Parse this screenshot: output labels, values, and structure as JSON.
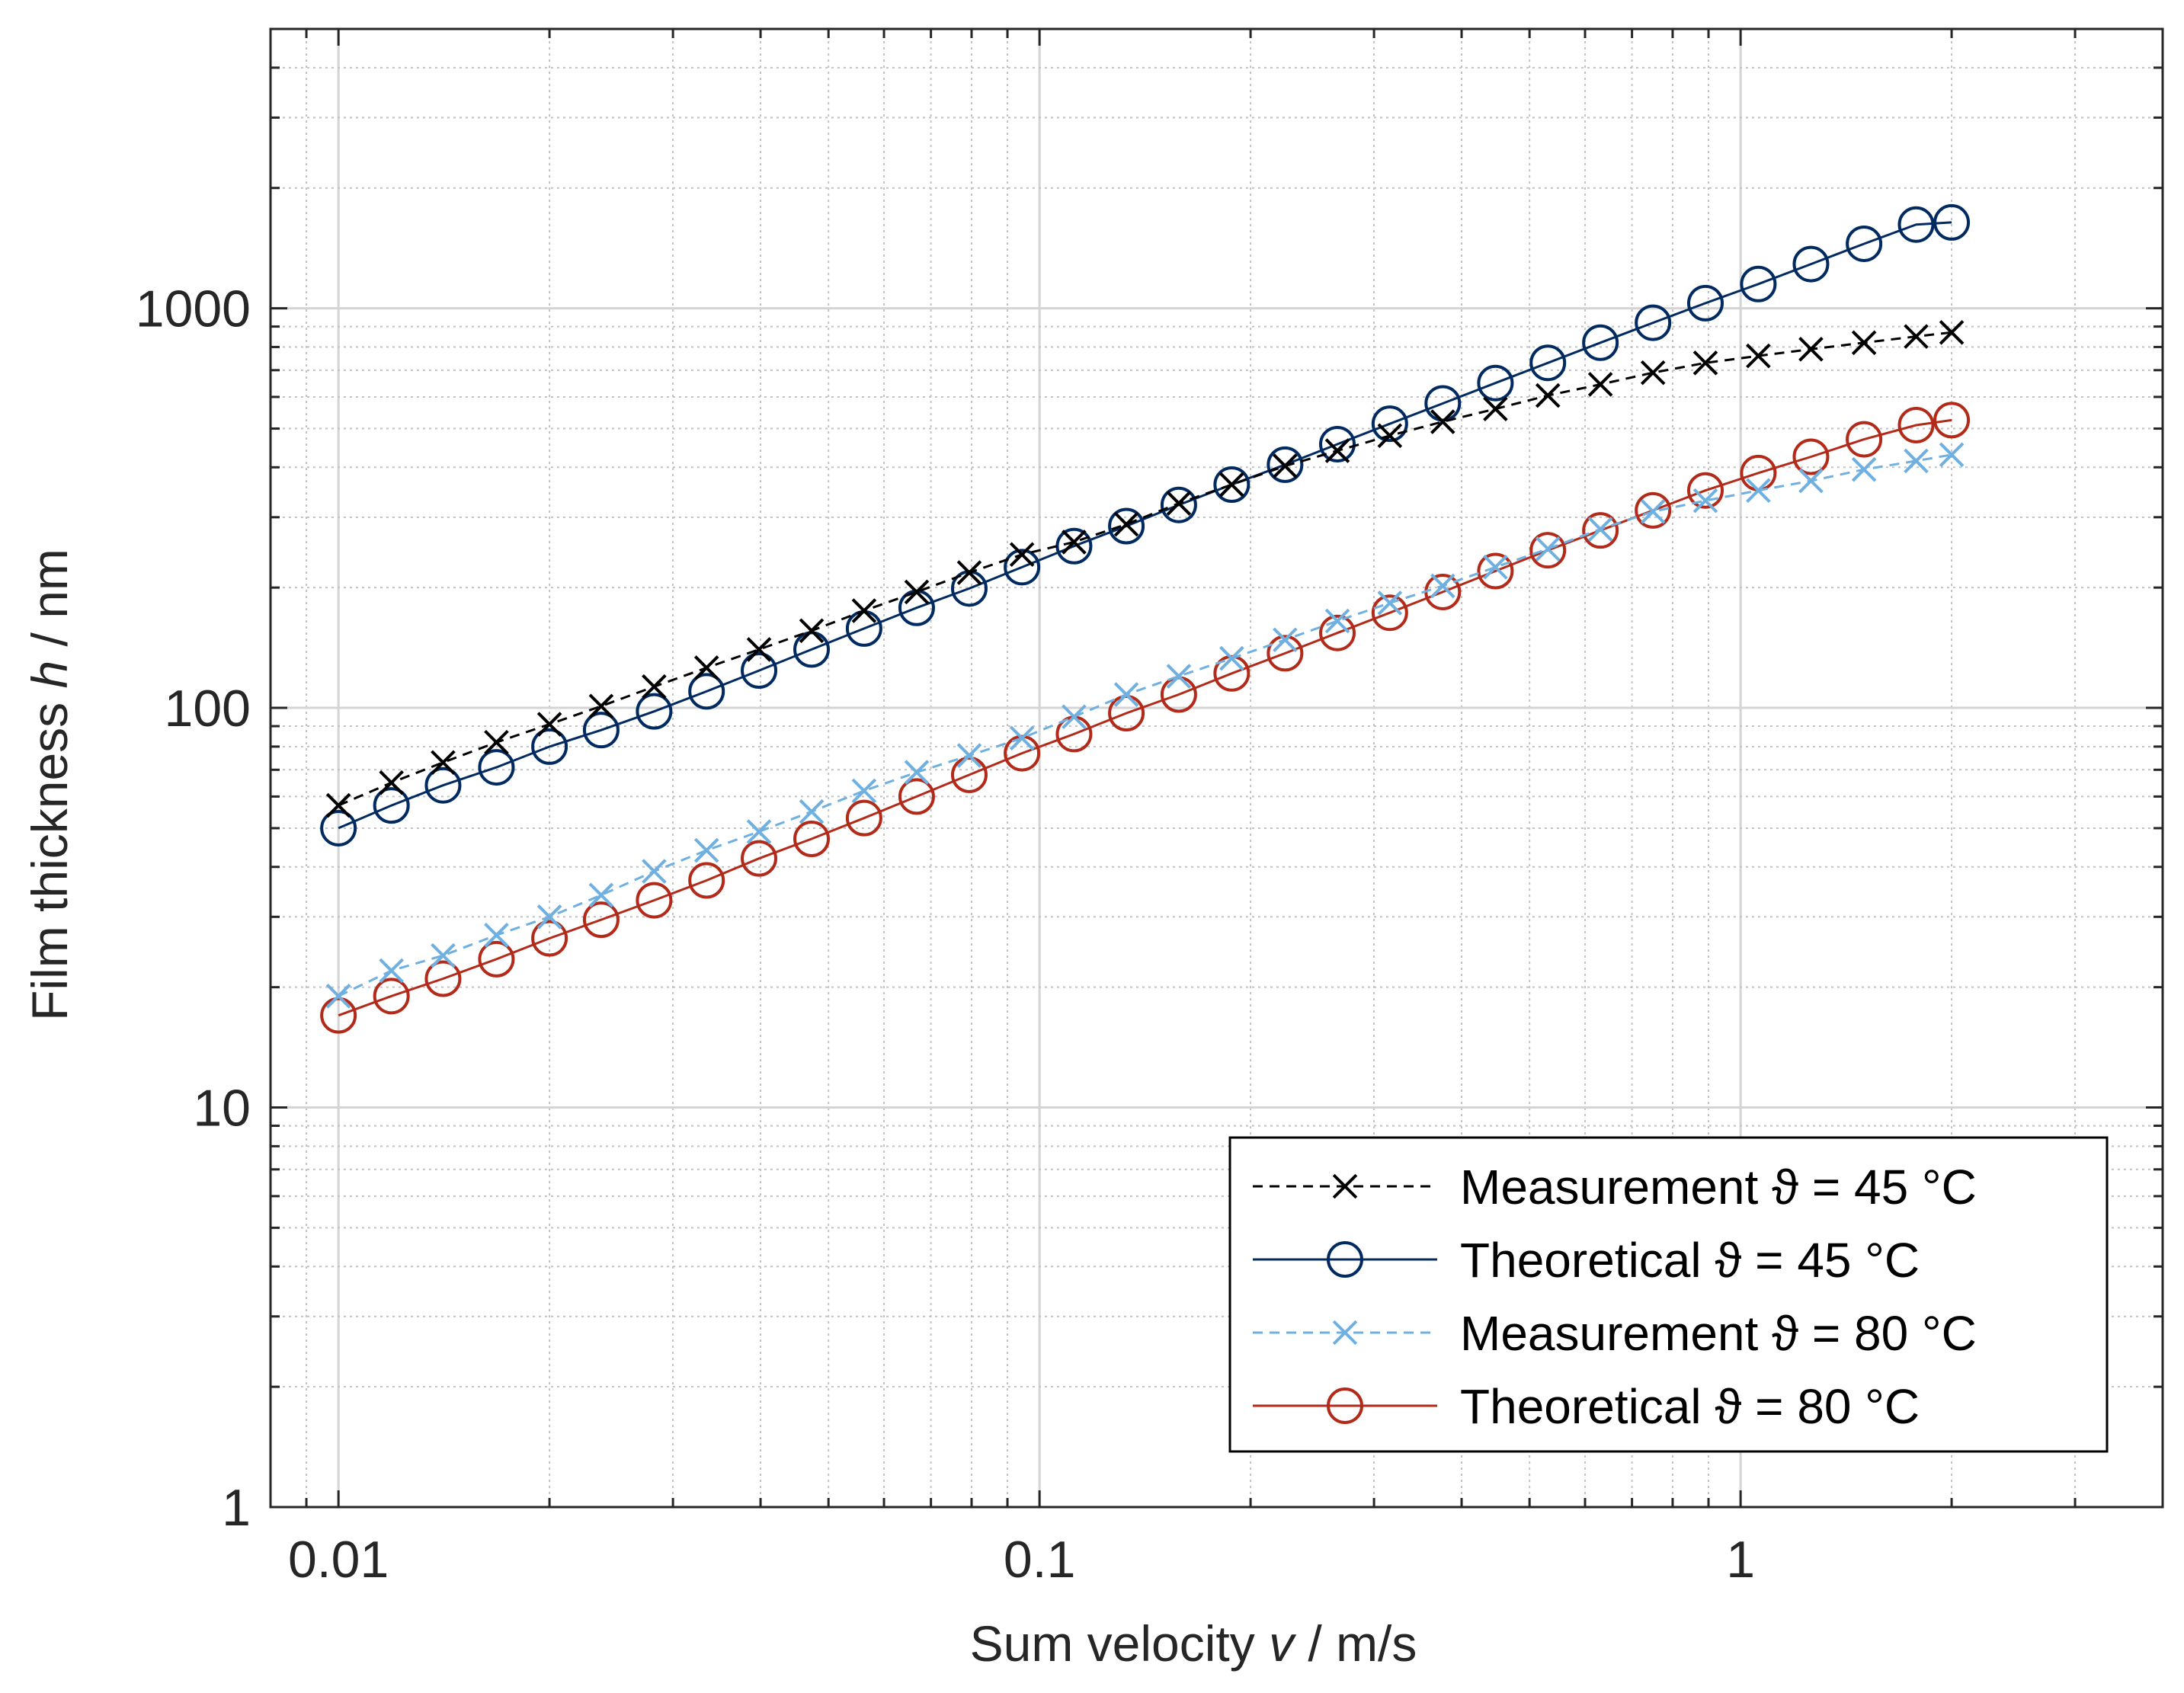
{
  "chart_data": {
    "type": "line",
    "xscale": "log",
    "yscale": "log",
    "xlim": [
      0.008,
      4
    ],
    "ylim": [
      1,
      5000
    ],
    "grid": true,
    "xlabel": {
      "prefix": "Sum velocity  ",
      "symbol": "v",
      "suffix": " / m/s"
    },
    "ylabel": {
      "prefix": "Film thickness  ",
      "symbol": "h",
      "suffix": " / nm"
    },
    "x_ticks": [
      {
        "value": 0.01,
        "label": "0.01"
      },
      {
        "value": 0.1,
        "label": "0.1"
      },
      {
        "value": 1,
        "label": "1"
      }
    ],
    "y_ticks": [
      {
        "value": 1,
        "label": "1"
      },
      {
        "value": 10,
        "label": "10"
      },
      {
        "value": 100,
        "label": "100"
      },
      {
        "value": 1000,
        "label": "1000"
      }
    ],
    "legend_position": "bottom-right",
    "x": [
      0.01,
      0.0119,
      0.0141,
      0.0168,
      0.02,
      0.0237,
      0.0282,
      0.0335,
      0.0398,
      0.0473,
      0.0562,
      0.0668,
      0.0794,
      0.0944,
      0.112,
      0.133,
      0.158,
      0.188,
      0.224,
      0.266,
      0.316,
      0.376,
      0.447,
      0.531,
      0.631,
      0.75,
      0.891,
      1.06,
      1.26,
      1.5,
      1.78,
      2.0
    ],
    "series": [
      {
        "name": "Measurement",
        "temperature": "ϑ = 45 °C",
        "style": "dashed",
        "marker": "x",
        "color": "#000000",
        "values": [
          57,
          65,
          73,
          82,
          91,
          101,
          113,
          126,
          140,
          156,
          175,
          195,
          218,
          242,
          260,
          288,
          325,
          362,
          403,
          440,
          480,
          520,
          560,
          605,
          645,
          690,
          730,
          760,
          790,
          820,
          850,
          870
        ]
      },
      {
        "name": "Theoretical",
        "temperature": "ϑ = 45 °C",
        "style": "solid",
        "marker": "o",
        "color": "#002a60",
        "values": [
          50,
          57,
          64,
          71,
          80,
          88,
          98,
          110,
          124,
          140,
          158,
          178,
          199,
          225,
          254,
          285,
          322,
          362,
          406,
          457,
          514,
          578,
          650,
          730,
          820,
          920,
          1030,
          1150,
          1290,
          1450,
          1620,
          1640
        ]
      },
      {
        "name": "Measurement",
        "temperature": "ϑ = 80 °C",
        "style": "dashed",
        "marker": "x",
        "color": "#6fb0e0",
        "values": [
          19,
          22,
          24,
          27,
          30,
          34,
          39,
          44,
          49,
          55,
          62,
          69,
          76,
          84,
          95,
          108,
          120,
          133,
          148,
          165,
          183,
          202,
          225,
          250,
          280,
          310,
          330,
          350,
          370,
          395,
          415,
          430
        ]
      },
      {
        "name": "Theoretical",
        "temperature": "ϑ = 80 °C",
        "style": "solid",
        "marker": "o",
        "color": "#b22a1a",
        "values": [
          17,
          19,
          21,
          23.5,
          26.5,
          29.5,
          33,
          37,
          42,
          47,
          53,
          60,
          68,
          77,
          86,
          97,
          108,
          122,
          137,
          154,
          173,
          195,
          220,
          248,
          278,
          312,
          350,
          387,
          425,
          470,
          510,
          525
        ]
      }
    ]
  }
}
